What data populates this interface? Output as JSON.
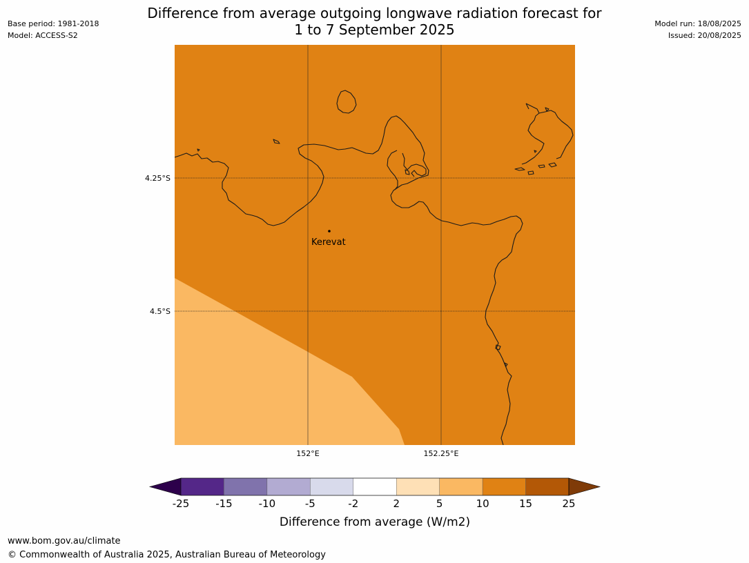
{
  "title": {
    "line1": "Difference from average outgoing longwave radiation forecast for",
    "line2": "1 to 7 September 2025"
  },
  "meta_left": {
    "base_period": "Base period: 1981-2018",
    "model": "Model: ACCESS-S2"
  },
  "meta_right": {
    "model_run": "Model run: 18/08/2025",
    "issued": "Issued: 20/08/2025"
  },
  "map": {
    "lat_labels": [
      "4.25°S",
      "4.5°S"
    ],
    "lon_labels": [
      "152°E",
      "152.25°E"
    ],
    "place": {
      "name": "Kerevat"
    },
    "colors": {
      "fill_main": "#e08214",
      "fill_low": "#fab862",
      "coast": "#1a1a1a",
      "grid": "#222222"
    },
    "shaded_regions": [
      {
        "category": "10 to 15",
        "color": "#e08214"
      },
      {
        "category": "5 to 10",
        "color": "#fab862"
      }
    ]
  },
  "colorbar": {
    "tick_labels": [
      "-25",
      "-15",
      "-10",
      "-5",
      "-2",
      "2",
      "5",
      "10",
      "15",
      "25"
    ],
    "colors": [
      "#542788",
      "#8073ac",
      "#b2abd2",
      "#d8daeb",
      "#ffffff",
      "#fee0b6",
      "#fab862",
      "#e08214",
      "#b35806"
    ],
    "extend_low_color": "#2d004b",
    "extend_high_color": "#7f3b08",
    "label": "Difference from average (W/m2)"
  },
  "footer": {
    "url": "www.bom.gov.au/climate",
    "copyright": "© Commonwealth of Australia 2025, Australian Bureau of Meteorology"
  }
}
